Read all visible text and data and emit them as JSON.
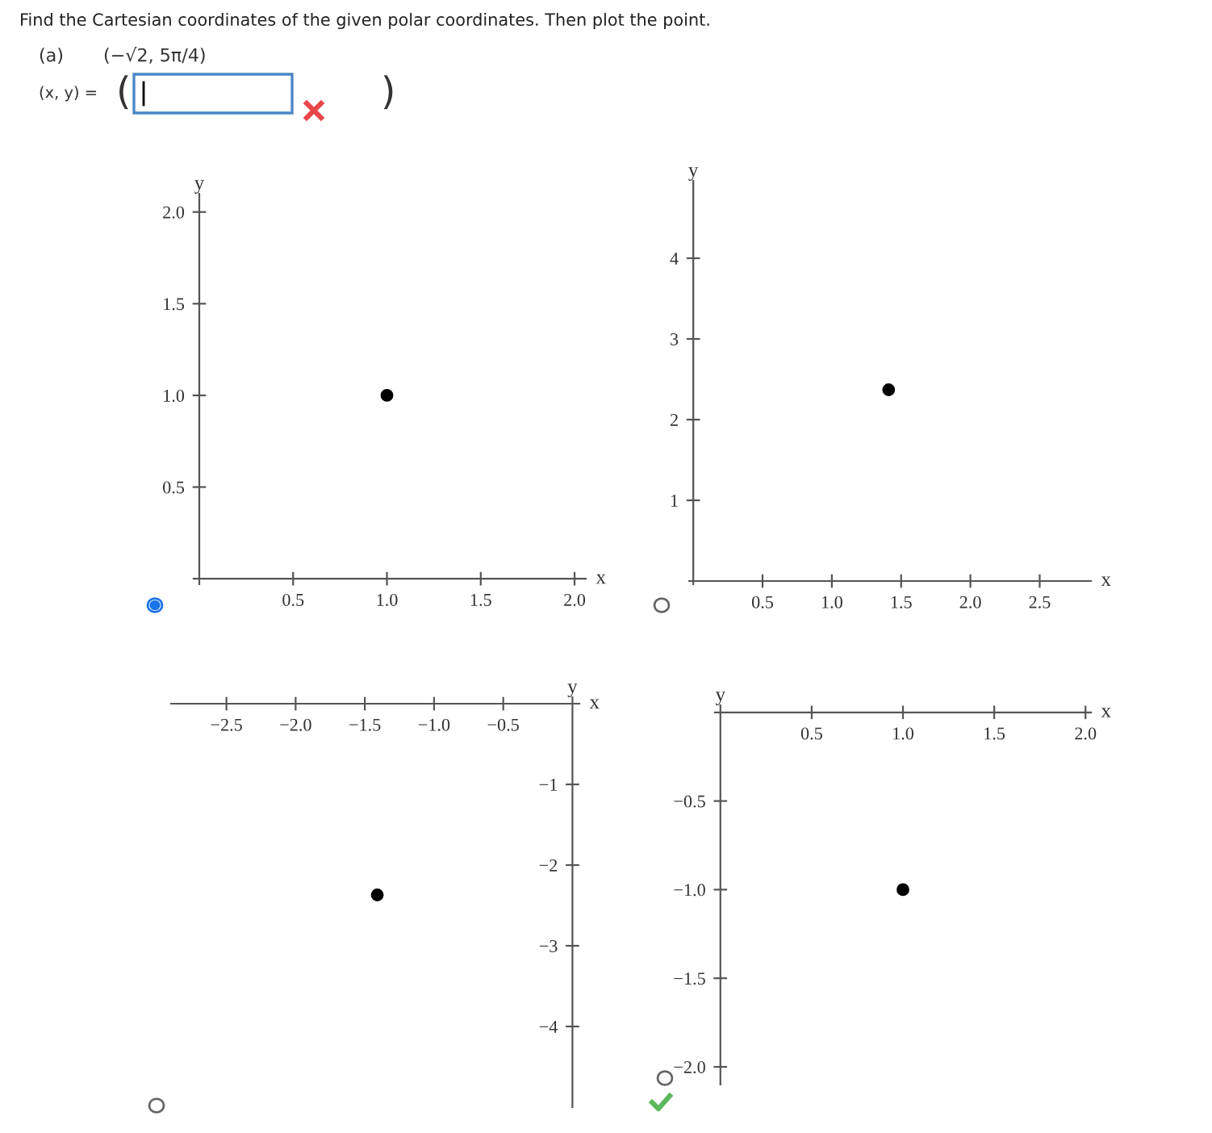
{
  "chart_data": [
    {
      "type": "scatter",
      "title": "Find the Cartesian coordinates of the given polar coordinates. Then plot the point.",
      "annotations": [
        "(a)",
        "(−√2, 5π/4)",
        "(x, y) =",
        "(",
        ")"
      ],
      "xlabel": "x",
      "ylabel": "y",
      "x": [
        1.0
      ],
      "values": [
        1.0
      ],
      "color": "#000000",
      "marker": "circle",
      "xlim": [
        -0.03,
        2.06
      ],
      "ylim": [
        -0.03,
        2.1
      ],
      "xticks": [
        0.5,
        {
          "value": 1,
          "label": "1.0"
        },
        1.5,
        {
          "value": 2,
          "label": "2.0"
        }
      ],
      "yticks": [
        0.5,
        {
          "value": 1,
          "label": "1.0"
        },
        1.5,
        {
          "value": 2,
          "label": "2.0"
        }
      ],
      "grid": false,
      "legend": false
    },
    {
      "type": "scatter",
      "xlabel": "x",
      "ylabel": "y",
      "x": [
        1.41
      ],
      "values": [
        2.37
      ],
      "color": "#000000",
      "marker": "circle",
      "xlim": [
        -0.03,
        2.87
      ],
      "ylim": [
        -0.04,
        4.96
      ],
      "xticks": [
        0.5,
        {
          "value": 1,
          "label": "1.0"
        },
        1.5,
        {
          "value": 2,
          "label": "2.0"
        },
        2.5
      ],
      "yticks": [
        1,
        2,
        3,
        4
      ],
      "grid": false,
      "legend": false
    },
    {
      "type": "scatter",
      "xlabel": "x",
      "ylabel": "y",
      "x": [
        -1.41
      ],
      "values": [
        -2.37
      ],
      "color": "#000000",
      "marker": "circle",
      "xlim": [
        -2.9,
        0.05
      ],
      "ylim": [
        -5.0,
        0.08
      ],
      "xticks": [
        -2.5,
        {
          "value": -2,
          "label": "−2.0"
        },
        -1.5,
        {
          "value": -1,
          "label": "−1.0"
        },
        -0.5
      ],
      "yticks": [
        -4,
        -3,
        -2,
        -1
      ],
      "grid": false,
      "legend": false
    },
    {
      "type": "scatter",
      "xlabel": "x",
      "ylabel": "y",
      "x": [
        1.0
      ],
      "values": [
        -1.0
      ],
      "color": "#000000",
      "marker": "circle",
      "xlim": [
        -0.03,
        2.03
      ],
      "ylim": [
        -2.1,
        0.04
      ],
      "xticks": [
        0.5,
        {
          "value": 1,
          "label": "1.0"
        },
        1.5,
        {
          "value": 2,
          "label": "2.0"
        }
      ],
      "yticks": [
        {
          "value": -2,
          "label": "−2.0"
        },
        -1.5,
        {
          "value": -1,
          "label": "−1.0"
        },
        -0.5
      ],
      "grid": false,
      "legend": false
    }
  ]
}
